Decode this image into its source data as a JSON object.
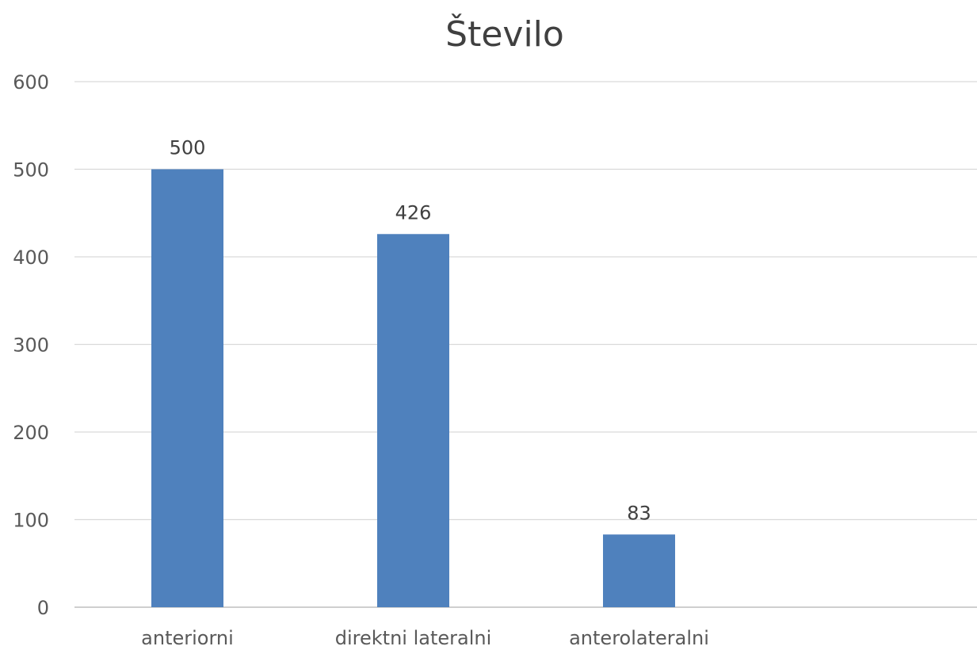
{
  "chart_data": {
    "type": "bar",
    "title": "Število",
    "xlabel": "",
    "ylabel": "",
    "categories": [
      "anteriorni",
      "direktni lateralni",
      "anterolateralni",
      ""
    ],
    "values": [
      500,
      426,
      83,
      null
    ],
    "ylim": [
      0,
      600
    ],
    "yticks": [
      0,
      100,
      200,
      300,
      400,
      500,
      600
    ],
    "ytick_labels": [
      "0",
      "100",
      "200",
      "300",
      "400",
      "500",
      "600"
    ],
    "data_labels": [
      "500",
      "426",
      "83",
      ""
    ],
    "grid": true,
    "legend": "none",
    "colors": {
      "bar": "#4f81bd",
      "grid": "#d9d9d9",
      "axis": "#bfbfbf"
    }
  }
}
